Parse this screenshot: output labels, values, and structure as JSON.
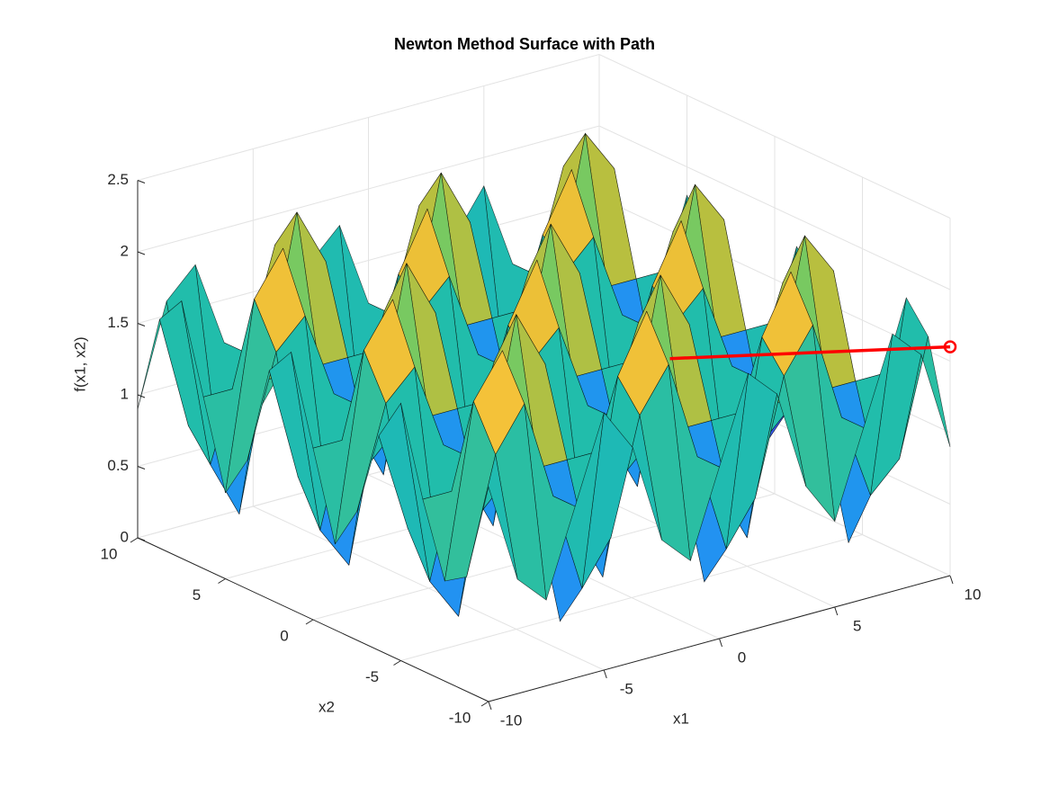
{
  "chart_data": {
    "type": "surface",
    "title": "Newton Method Surface with Path",
    "x_label": "x1",
    "y_label": "x2",
    "z_label": "f(x1, x2)",
    "x": [
      -10,
      -8.75,
      -7.5,
      -6.25,
      -5,
      -3.75,
      -2.5,
      -1.25,
      0,
      1.25,
      2.5,
      3.75,
      5,
      6.25,
      7.5,
      8.75,
      10
    ],
    "y": [
      -10,
      -8.75,
      -7.5,
      -6.25,
      -5,
      -3.75,
      -2.5,
      -1.25,
      0,
      1.25,
      2.5,
      3.75,
      5,
      6.25,
      7.5,
      8.75,
      10
    ],
    "z": [
      [
        1.5,
        0.8,
        0.6,
        1.2,
        1.8,
        1.5,
        0.8,
        0.6,
        1.2,
        1.8,
        1.6,
        0.9,
        0.6,
        1.2,
        1.8,
        1.6,
        0.9
      ],
      [
        0.8,
        1.6,
        1.9,
        1.2,
        0.5,
        0.8,
        1.6,
        1.9,
        1.2,
        0.5,
        0.8,
        1.6,
        1.9,
        1.2,
        0.6,
        0.8,
        1.6
      ],
      [
        0.7,
        1.9,
        2.2,
        1.2,
        0.2,
        0.6,
        1.8,
        2.2,
        1.2,
        0.2,
        0.6,
        1.8,
        2.2,
        1.2,
        0.2,
        0.6,
        1.8
      ],
      [
        1.2,
        1.2,
        1.2,
        1.2,
        1.2,
        1.2,
        1.2,
        1.2,
        1.2,
        1.2,
        1.2,
        1.2,
        1.2,
        1.2,
        1.2,
        1.2,
        1.2
      ],
      [
        1.8,
        0.5,
        0.2,
        1.2,
        2.2,
        1.8,
        0.6,
        0.2,
        1.2,
        2.2,
        1.8,
        0.6,
        0.2,
        1.2,
        2.2,
        1.9,
        0.6
      ],
      [
        1.5,
        0.8,
        0.6,
        1.2,
        1.8,
        1.6,
        0.8,
        0.6,
        1.2,
        1.8,
        1.6,
        0.8,
        0.6,
        1.2,
        1.8,
        1.6,
        0.9
      ],
      [
        0.9,
        1.6,
        1.8,
        1.2,
        0.6,
        0.8,
        1.6,
        1.8,
        1.2,
        0.6,
        0.8,
        1.6,
        1.8,
        1.2,
        0.6,
        0.8,
        1.6
      ],
      [
        0.6,
        1.9,
        2.2,
        1.2,
        0.2,
        0.6,
        1.8,
        2.2,
        1.2,
        0.2,
        0.6,
        1.8,
        2.2,
        1.2,
        0.2,
        0.5,
        1.8
      ],
      [
        1.2,
        1.2,
        1.2,
        1.2,
        1.2,
        1.2,
        1.2,
        1.2,
        1.2,
        1.2,
        1.2,
        1.2,
        1.2,
        1.2,
        1.2,
        1.2,
        1.2
      ],
      [
        1.8,
        0.5,
        0.2,
        1.2,
        2.2,
        1.8,
        0.6,
        0.2,
        1.2,
        2.2,
        1.8,
        0.6,
        0.2,
        1.2,
        2.2,
        1.9,
        0.6
      ],
      [
        1.6,
        0.8,
        0.6,
        1.2,
        1.8,
        1.6,
        0.8,
        0.6,
        1.2,
        1.8,
        1.6,
        0.8,
        0.6,
        1.2,
        1.8,
        1.6,
        0.9
      ],
      [
        0.9,
        1.6,
        1.8,
        1.2,
        0.6,
        0.8,
        1.6,
        1.8,
        1.2,
        0.6,
        0.8,
        1.6,
        1.8,
        1.2,
        0.6,
        0.8,
        1.5
      ],
      [
        0.6,
        1.9,
        2.2,
        1.2,
        0.2,
        0.6,
        1.8,
        2.2,
        1.2,
        0.2,
        0.6,
        1.8,
        2.2,
        1.2,
        0.2,
        0.5,
        1.8
      ],
      [
        1.2,
        1.2,
        1.2,
        1.2,
        1.2,
        1.2,
        1.2,
        1.2,
        1.2,
        1.2,
        1.2,
        1.2,
        1.2,
        1.2,
        1.2,
        1.2,
        1.2
      ],
      [
        1.8,
        0.6,
        0.2,
        1.2,
        2.2,
        1.8,
        0.6,
        0.2,
        1.2,
        2.2,
        1.8,
        0.6,
        0.2,
        1.2,
        2.2,
        1.9,
        0.7
      ],
      [
        1.6,
        0.8,
        0.6,
        1.2,
        1.9,
        1.6,
        0.8,
        0.5,
        1.2,
        1.9,
        1.6,
        0.8,
        0.5,
        1.2,
        1.9,
        1.6,
        0.8
      ],
      [
        0.9,
        1.6,
        1.8,
        1.2,
        0.6,
        0.9,
        1.6,
        1.8,
        1.2,
        0.6,
        0.8,
        1.5,
        1.8,
        1.2,
        0.6,
        0.8,
        1.5
      ]
    ],
    "colormap": "parula",
    "xlim": [
      -10,
      10
    ],
    "ylim": [
      -10,
      10
    ],
    "zlim": [
      0,
      2.5
    ],
    "xticks": [
      -10,
      -5,
      0,
      5,
      10
    ],
    "yticks": [
      -10,
      -5,
      0,
      5,
      10
    ],
    "zticks": [
      0,
      0.5,
      1,
      1.5,
      2,
      2.5
    ],
    "grid": true,
    "path": {
      "color": "#ff0000",
      "x1": [
        10,
        5
      ],
      "x2": [
        -10,
        -0.6
      ],
      "z": [
        1.6,
        1.2
      ]
    }
  }
}
